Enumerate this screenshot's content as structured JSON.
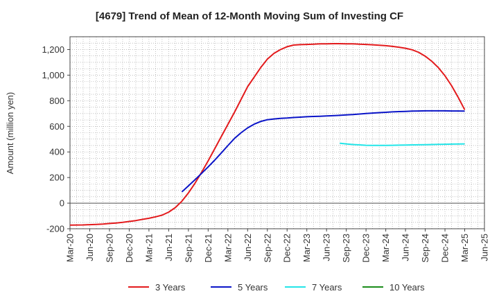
{
  "chart_data": {
    "type": "line",
    "title": "[4679]  Trend of Mean of 12-Month Moving Sum of Investing CF",
    "xlabel": "",
    "ylabel": "Amount (million yen)",
    "ylim": [
      -200,
      1300
    ],
    "yticks": [
      -200,
      0,
      200,
      400,
      600,
      800,
      1000,
      1200
    ],
    "ytick_labels": [
      "-200",
      "0",
      "200",
      "400",
      "600",
      "800",
      "1,000",
      "1,200"
    ],
    "x_start": "2020-03",
    "x_end": "2025-06",
    "xtick_labels": [
      "Mar-20",
      "Jun-20",
      "Sep-20",
      "Dec-20",
      "Mar-21",
      "Jun-21",
      "Sep-21",
      "Dec-21",
      "Mar-22",
      "Jun-22",
      "Sep-22",
      "Dec-22",
      "Mar-23",
      "Jun-23",
      "Sep-23",
      "Dec-23",
      "Mar-24",
      "Jun-24",
      "Sep-24",
      "Dec-24",
      "Mar-25",
      "Jun-25"
    ],
    "grid": true,
    "legend_position": "bottom",
    "series": [
      {
        "name": "3 Years",
        "color": "#e31a1c",
        "x": [
          "2020-03",
          "2020-04",
          "2020-05",
          "2020-06",
          "2020-07",
          "2020-08",
          "2020-09",
          "2020-10",
          "2020-11",
          "2020-12",
          "2021-01",
          "2021-02",
          "2021-03",
          "2021-04",
          "2021-05",
          "2021-06",
          "2021-07",
          "2021-08",
          "2021-09",
          "2021-10",
          "2021-11",
          "2021-12",
          "2022-01",
          "2022-02",
          "2022-03",
          "2022-04",
          "2022-05",
          "2022-06",
          "2022-07",
          "2022-08",
          "2022-09",
          "2022-10",
          "2022-11",
          "2022-12",
          "2023-01",
          "2023-02",
          "2023-03",
          "2023-04",
          "2023-05",
          "2023-06",
          "2023-07",
          "2023-08",
          "2023-09",
          "2023-10",
          "2023-11",
          "2023-12",
          "2024-01",
          "2024-02",
          "2024-03",
          "2024-04",
          "2024-05",
          "2024-06",
          "2024-07",
          "2024-08",
          "2024-09",
          "2024-10",
          "2024-11",
          "2024-12",
          "2025-01",
          "2025-02",
          "2025-03"
        ],
        "values": [
          -172,
          -171,
          -170,
          -168,
          -166,
          -163,
          -159,
          -155,
          -150,
          -143,
          -136,
          -127,
          -118,
          -107,
          -94,
          -70,
          -35,
          15,
          80,
          155,
          240,
          330,
          425,
          520,
          615,
          710,
          810,
          910,
          985,
          1060,
          1125,
          1170,
          1200,
          1222,
          1235,
          1238,
          1240,
          1242,
          1244,
          1245,
          1246,
          1246,
          1245,
          1244,
          1242,
          1240,
          1237,
          1234,
          1230,
          1225,
          1218,
          1210,
          1198,
          1178,
          1148,
          1108,
          1058,
          995,
          918,
          828,
          730
        ]
      },
      {
        "name": "5 Years",
        "color": "#0a14c8",
        "x": [
          "2021-08",
          "2021-09",
          "2021-10",
          "2021-11",
          "2021-12",
          "2022-01",
          "2022-02",
          "2022-03",
          "2022-04",
          "2022-05",
          "2022-06",
          "2022-07",
          "2022-08",
          "2022-09",
          "2022-10",
          "2022-11",
          "2022-12",
          "2023-01",
          "2023-02",
          "2023-03",
          "2023-04",
          "2023-05",
          "2023-06",
          "2023-07",
          "2023-08",
          "2023-09",
          "2023-10",
          "2023-11",
          "2023-12",
          "2024-01",
          "2024-02",
          "2024-03",
          "2024-04",
          "2024-05",
          "2024-06",
          "2024-07",
          "2024-08",
          "2024-09",
          "2024-10",
          "2024-11",
          "2024-12",
          "2025-01",
          "2025-02",
          "2025-03"
        ],
        "values": [
          88,
          135,
          183,
          232,
          283,
          336,
          392,
          450,
          505,
          550,
          588,
          617,
          638,
          652,
          658,
          662,
          665,
          669,
          672,
          675,
          677,
          679,
          681,
          683,
          686,
          689,
          692,
          696,
          700,
          704,
          707,
          710,
          713,
          715,
          717,
          719,
          720,
          721,
          721,
          721,
          721,
          720,
          720,
          719
        ]
      },
      {
        "name": "7 Years",
        "color": "#22e5e8",
        "x": [
          "2023-08",
          "2023-09",
          "2023-10",
          "2023-11",
          "2023-12",
          "2024-01",
          "2024-02",
          "2024-03",
          "2024-04",
          "2024-05",
          "2024-06",
          "2024-07",
          "2024-08",
          "2024-09",
          "2024-10",
          "2024-11",
          "2024-12",
          "2025-01",
          "2025-02",
          "2025-03"
        ],
        "values": [
          468,
          463,
          458,
          455,
          452,
          451,
          451,
          451,
          452,
          453,
          454,
          455,
          456,
          457,
          458,
          459,
          460,
          461,
          462,
          463
        ]
      },
      {
        "name": "10 Years",
        "color": "#1a8c1a",
        "x": [],
        "values": []
      }
    ]
  }
}
